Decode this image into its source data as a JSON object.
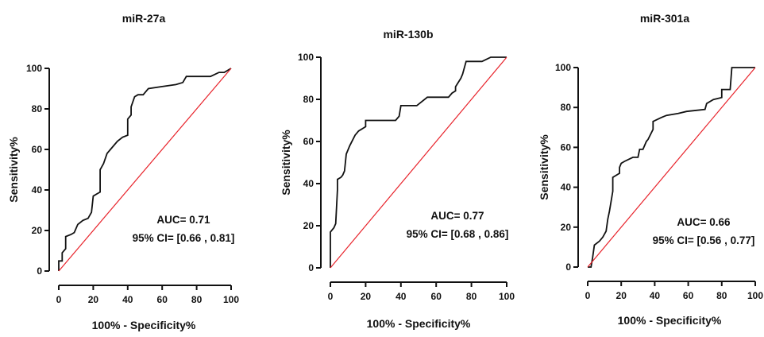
{
  "colors": {
    "roc": "#111111",
    "reference": "#e8232b",
    "axis": "#111111"
  },
  "chart_data": [
    {
      "type": "line",
      "title": "miR-27a",
      "xlabel": "100% - Specificity%",
      "ylabel": "Sensitivity%",
      "xlim": [
        0,
        100
      ],
      "ylim": [
        0,
        100
      ],
      "xticks": [
        "0",
        "20",
        "40",
        "60",
        "80",
        "100"
      ],
      "yticks": [
        "0",
        "20",
        "40",
        "60",
        "80",
        "100"
      ],
      "annotation": {
        "auc": "AUC= 0.71",
        "ci": "95% CI= [0.66 , 0.81]"
      },
      "series": [
        {
          "role": "roc",
          "x": [
            0,
            0,
            2,
            2,
            4,
            4,
            7,
            9,
            11,
            14,
            17,
            19,
            20,
            22,
            24,
            24,
            26,
            28,
            30,
            34,
            37,
            40,
            40,
            42,
            42,
            44,
            46,
            49,
            50,
            52,
            60,
            68,
            72,
            74,
            88,
            93,
            96,
            100
          ],
          "y": [
            0,
            5,
            5,
            9,
            11,
            17,
            18,
            19,
            23,
            25,
            26,
            29,
            37,
            38,
            39,
            50,
            53,
            58,
            60,
            64,
            66,
            67,
            75,
            77,
            81,
            86,
            87,
            87,
            88,
            90,
            91,
            92,
            93,
            96,
            96,
            98,
            98,
            100
          ]
        },
        {
          "role": "reference",
          "x": [
            0,
            100
          ],
          "y": [
            0,
            100
          ]
        }
      ]
    },
    {
      "type": "line",
      "title": "miR-130b",
      "xlabel": "100% - Specificity%",
      "ylabel": "Sensitivity%",
      "xlim": [
        0,
        100
      ],
      "ylim": [
        0,
        100
      ],
      "xticks": [
        "0",
        "20",
        "40",
        "60",
        "80",
        "100"
      ],
      "yticks": [
        "0",
        "20",
        "40",
        "60",
        "80",
        "100"
      ],
      "annotation": {
        "auc": "AUC= 0.77",
        "ci": "95% CI= [0.68 , 0.86]"
      },
      "series": [
        {
          "role": "roc",
          "x": [
            0,
            0,
            2,
            3,
            4,
            4,
            6,
            7,
            8,
            9,
            11,
            14,
            16,
            20,
            20,
            37,
            39,
            40,
            49,
            55,
            67,
            69,
            71,
            71,
            74,
            75,
            77,
            86,
            91,
            100
          ],
          "y": [
            0,
            17,
            19,
            21,
            37,
            42,
            43,
            44,
            46,
            54,
            58,
            63,
            65,
            67,
            70,
            70,
            72,
            77,
            77,
            81,
            81,
            83,
            84,
            86,
            90,
            92,
            98,
            98,
            100,
            100
          ]
        },
        {
          "role": "reference",
          "x": [
            0,
            100
          ],
          "y": [
            0,
            100
          ]
        }
      ]
    },
    {
      "type": "line",
      "title": "miR-301a",
      "xlabel": "100% - Specificity%",
      "ylabel": "Sensitivity%",
      "xlim": [
        0,
        100
      ],
      "ylim": [
        0,
        100
      ],
      "xticks": [
        "0",
        "20",
        "40",
        "60",
        "80",
        "100"
      ],
      "yticks": [
        "0",
        "20",
        "40",
        "60",
        "80",
        "100"
      ],
      "annotation": {
        "auc": "AUC= 0.66",
        "ci": "95% CI= [0.56 , 0.77]"
      },
      "series": [
        {
          "role": "roc",
          "x": [
            0,
            2,
            3,
            4,
            7,
            9,
            11,
            12,
            13,
            15,
            15,
            19,
            19,
            20,
            22,
            27,
            30,
            31,
            33,
            35,
            36,
            39,
            39,
            44,
            47,
            54,
            59,
            70,
            71,
            75,
            80,
            80,
            85,
            86,
            100
          ],
          "y": [
            0,
            0,
            5,
            11,
            13,
            15,
            18,
            24,
            28,
            38,
            45,
            47,
            50,
            52,
            53,
            55,
            55,
            59,
            59,
            63,
            64,
            69,
            73,
            75,
            76,
            77,
            78,
            79,
            82,
            84,
            85,
            89,
            89,
            100,
            100
          ]
        },
        {
          "role": "reference",
          "x": [
            0,
            100
          ],
          "y": [
            0,
            100
          ]
        }
      ]
    }
  ]
}
